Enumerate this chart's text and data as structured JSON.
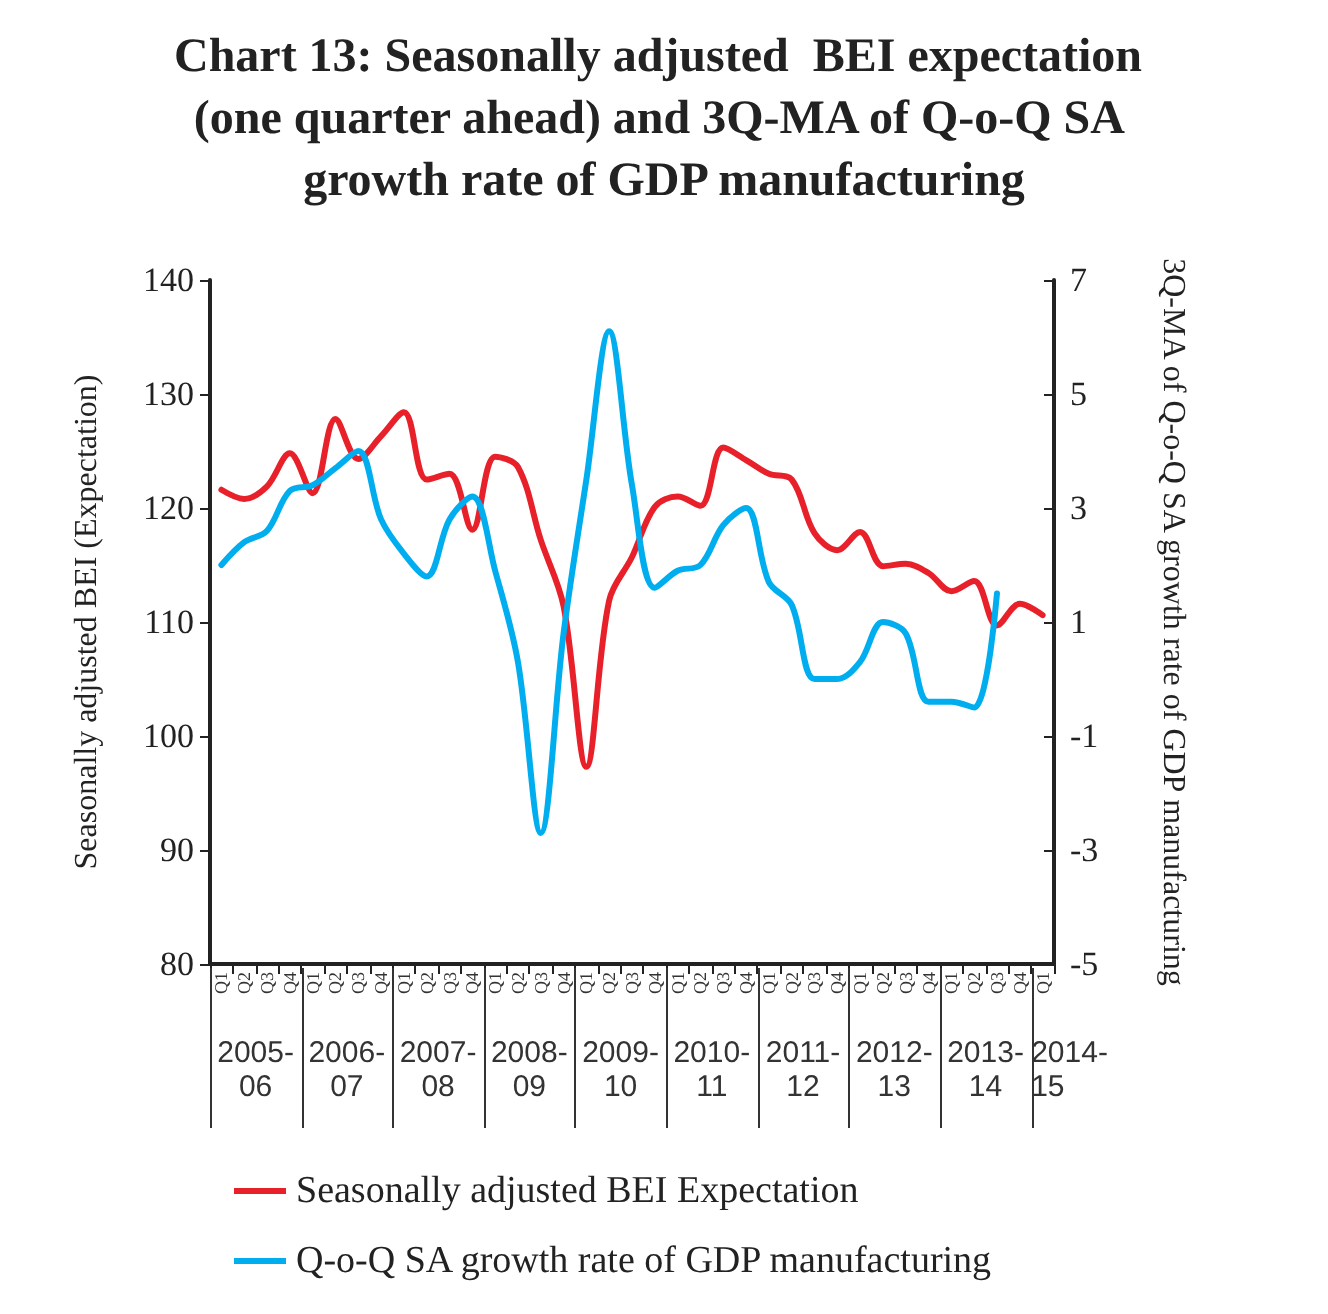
{
  "chart_data": {
    "type": "line",
    "title": "Chart 13: Seasonally adjusted  BEI expectation (one quarter ahead) and 3Q-MA of Q-o-Q SA growth rate of GDP manufacturing",
    "ylabel": "Seasonally adjusted BEI (Expectation)",
    "y2label": "3Q-MA of Q-o-Q SA growth rate of GDP manufacturing",
    "categories": [
      "Q1",
      "Q2",
      "Q3",
      "Q4",
      "Q1",
      "Q2",
      "Q3",
      "Q4",
      "Q1",
      "Q2",
      "Q3",
      "Q4",
      "Q1",
      "Q2",
      "Q3",
      "Q4",
      "Q1",
      "Q2",
      "Q3",
      "Q4",
      "Q1",
      "Q2",
      "Q3",
      "Q4",
      "Q1",
      "Q2",
      "Q3",
      "Q4",
      "Q1",
      "Q2",
      "Q3",
      "Q4",
      "Q1",
      "Q2",
      "Q3",
      "Q4",
      "Q1"
    ],
    "annotations": [
      "2005-06",
      "2006-07",
      "2007-08",
      "2008-09",
      "2009-10",
      "2010-11",
      "2011-12",
      "2012-13",
      "2013-14",
      "2014-15"
    ],
    "series": [
      {
        "name": "Seasonally adjusted BEI Expectation",
        "color": "#e8202a",
        "values": [
          121.6,
          120.8,
          121.9,
          124.8,
          121.3,
          127.8,
          124.3,
          126.3,
          128.4,
          122.5,
          123.0,
          118.1,
          124.5,
          123.6,
          117.2,
          111.4,
          97.3,
          111.9,
          115.7,
          120.1,
          121.0,
          120.2,
          125.3,
          124.2,
          123.0,
          122.5,
          117.8,
          116.3,
          117.9,
          114.9,
          115.1,
          114.3,
          112.7,
          113.6,
          109.7,
          111.6,
          110.6
        ]
      },
      {
        "name": "Q-o-Q SA growth rate of GDP manufacturing",
        "color": "#00aeef",
        "axis": "y2",
        "values": [
          2.0,
          2.4,
          2.6,
          3.3,
          3.4,
          3.7,
          4.0,
          2.8,
          2.2,
          1.8,
          2.8,
          3.2,
          1.9,
          0.3,
          -2.7,
          0.8,
          3.5,
          6.1,
          3.4,
          1.6,
          1.9,
          2.0,
          2.7,
          3.0,
          1.7,
          1.3,
          0.0,
          0.0,
          0.3,
          1.0,
          0.8,
          -0.4,
          -0.4,
          -0.5,
          1.5,
          null,
          null
        ]
      }
    ],
    "ylim": [
      80,
      140
    ],
    "yticks": [
      80,
      90,
      100,
      110,
      120,
      130,
      140
    ],
    "y2lim": [
      -5,
      7
    ],
    "y2ticks": [
      -5,
      -3,
      -1,
      1,
      3,
      5,
      7
    ],
    "legend": "bottom",
    "grid": false,
    "marker": "none",
    "line_style": "solid"
  }
}
